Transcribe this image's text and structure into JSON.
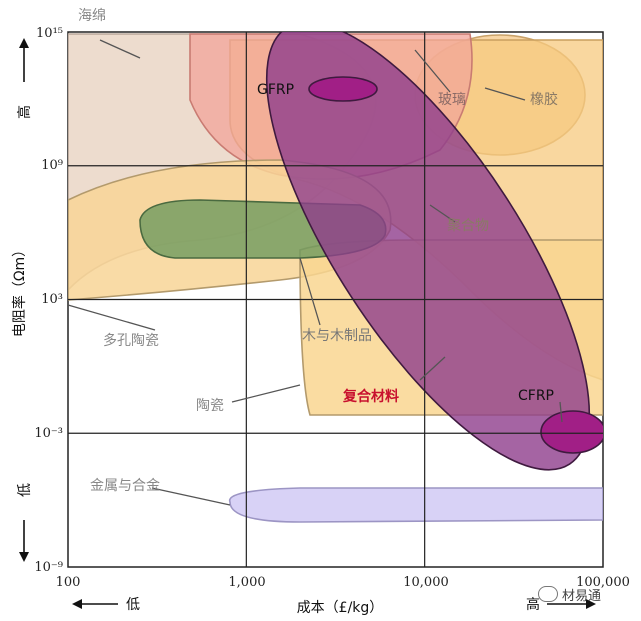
{
  "chart_data": {
    "type": "bubble-map",
    "xlabel": "成本（£/kg）",
    "ylabel": "电阻率（Ωm）",
    "x_scale": "log",
    "y_scale": "log",
    "xlim": [
      100,
      100000
    ],
    "ylim": [
      1e-09,
      1000000000000000.0
    ],
    "x_ticks": [
      "100",
      "1,000",
      "10,000",
      "100,000"
    ],
    "y_ticks": [
      "10⁻⁹",
      "10⁻³",
      "10³",
      "10⁹",
      "10¹⁵"
    ],
    "x_low": "低",
    "x_high": "高",
    "y_low": "低",
    "y_high": "高",
    "grid": true,
    "families": [
      {
        "name": "海绵",
        "color": "#ead6c6"
      },
      {
        "name": "玻璃",
        "color": "#f2a49a"
      },
      {
        "name": "橡胶",
        "color": "#f6cc8e"
      },
      {
        "name": "聚合物",
        "color": "#f7c97f"
      },
      {
        "name": "多孔陶瓷",
        "color": "#f8d596"
      },
      {
        "name": "木与木制品",
        "color": "#6e9a5e"
      },
      {
        "name": "陶瓷",
        "color": "#f9d690"
      },
      {
        "name": "复合材料",
        "color": "#8e3d8c"
      },
      {
        "name": "GFRP",
        "color": "#a11f86"
      },
      {
        "name": "CFRP",
        "color": "#a11f86"
      },
      {
        "name": "金属与合金",
        "color": "#d4cdf5"
      }
    ]
  },
  "watermark": {
    "text": "材易通"
  }
}
